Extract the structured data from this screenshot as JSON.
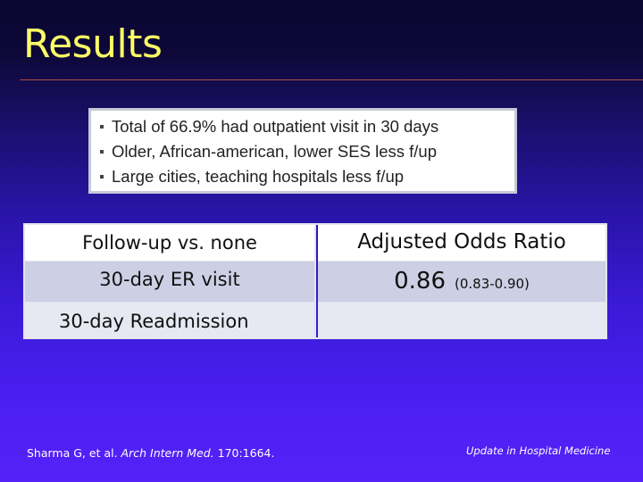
{
  "slide": {
    "title": "Results",
    "bullets": [
      "Total of 66.9% had outpatient visit in 30 days",
      "Older, African-american, lower SES less f/up",
      "Large cities, teaching hospitals less f/up"
    ],
    "table": {
      "header_left": "Follow-up vs. none",
      "header_right": "Adjusted Odds Ratio",
      "rows": [
        {
          "label": "30-day ER visit",
          "value": "0.86",
          "ci": "(0.83-0.90)"
        },
        {
          "label": "30-day Readmission",
          "value": "",
          "ci": ""
        }
      ]
    },
    "footer": {
      "citation_authors": "Sharma G, et al.",
      "citation_journal": "Arch Intern Med.",
      "citation_ref": "170:1664.",
      "series": "Update in Hospital Medicine"
    }
  },
  "colors": {
    "title": "#ffff66",
    "rule": "#b04a3a",
    "background_top": "#0a0630",
    "background_bottom": "#5522f8",
    "row_shade": "#cdd0e4"
  }
}
